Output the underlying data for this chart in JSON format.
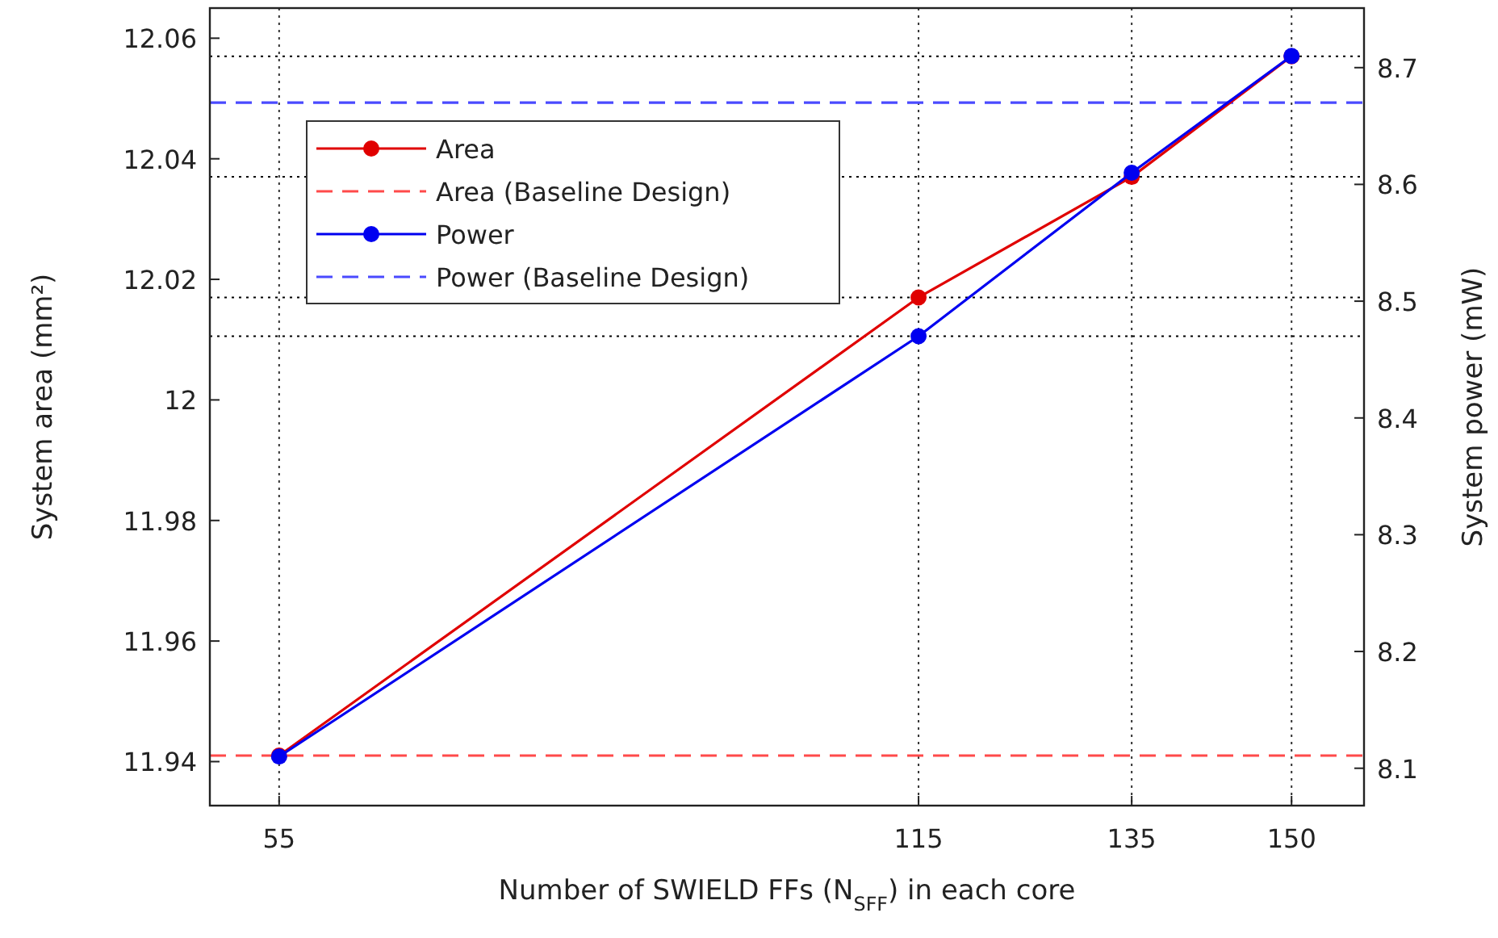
{
  "chart_data": {
    "type": "line",
    "xlabel": "Number of SWIELD FFs (N$_{SFF}$) in each core",
    "ylabel": "System area (mm²)",
    "y2label": "System power (mW)",
    "x": [
      55,
      115,
      135,
      150
    ],
    "series": [
      {
        "name": "Area",
        "color": "#e00000",
        "values": [
          11.941,
          12.017,
          12.037,
          12.057
        ],
        "marker": "circle",
        "line_style": "solid"
      },
      {
        "name": "Power",
        "color": "#0000f0",
        "values": [
          8.11,
          8.47,
          8.61,
          8.71
        ],
        "axis": "y2",
        "marker": "circle",
        "line_style": "solid"
      }
    ],
    "xlim": [
      48.5,
      156.8
    ],
    "xticks": [
      55,
      115,
      135,
      150
    ],
    "ylim": [
      11.9327,
      12.065
    ],
    "yticks": [
      11.94,
      11.96,
      11.98,
      {
        "value": 12,
        "label": "12"
      },
      12.02,
      12.04,
      12.06
    ],
    "y2lim": [
      8.068,
      8.751
    ],
    "y2ticks": [
      8.1,
      8.2,
      8.3,
      8.4,
      8.5,
      8.6,
      8.7
    ],
    "ref_lines": [
      {
        "axis": "y",
        "value": 12.057,
        "color": "#000000",
        "line_style": "dotted"
      },
      {
        "axis": "y",
        "value": 12.037,
        "color": "#000000",
        "line_style": "dotted"
      },
      {
        "axis": "y",
        "value": 12.017,
        "color": "#000000",
        "line_style": "dotted"
      },
      {
        "axis": "y2",
        "value": 8.47,
        "color": "#000000",
        "line_style": "dotted"
      },
      {
        "axis": "y",
        "value": 11.941,
        "label": "Area (Baseline Design)",
        "color": "#ff4a4a",
        "line_style": "dashed"
      },
      {
        "axis": "y2",
        "value": 8.67,
        "label": "Power (Baseline Design)",
        "color": "#4a4aff",
        "line_style": "dashed"
      }
    ],
    "grid": "x",
    "legend": "top left"
  }
}
